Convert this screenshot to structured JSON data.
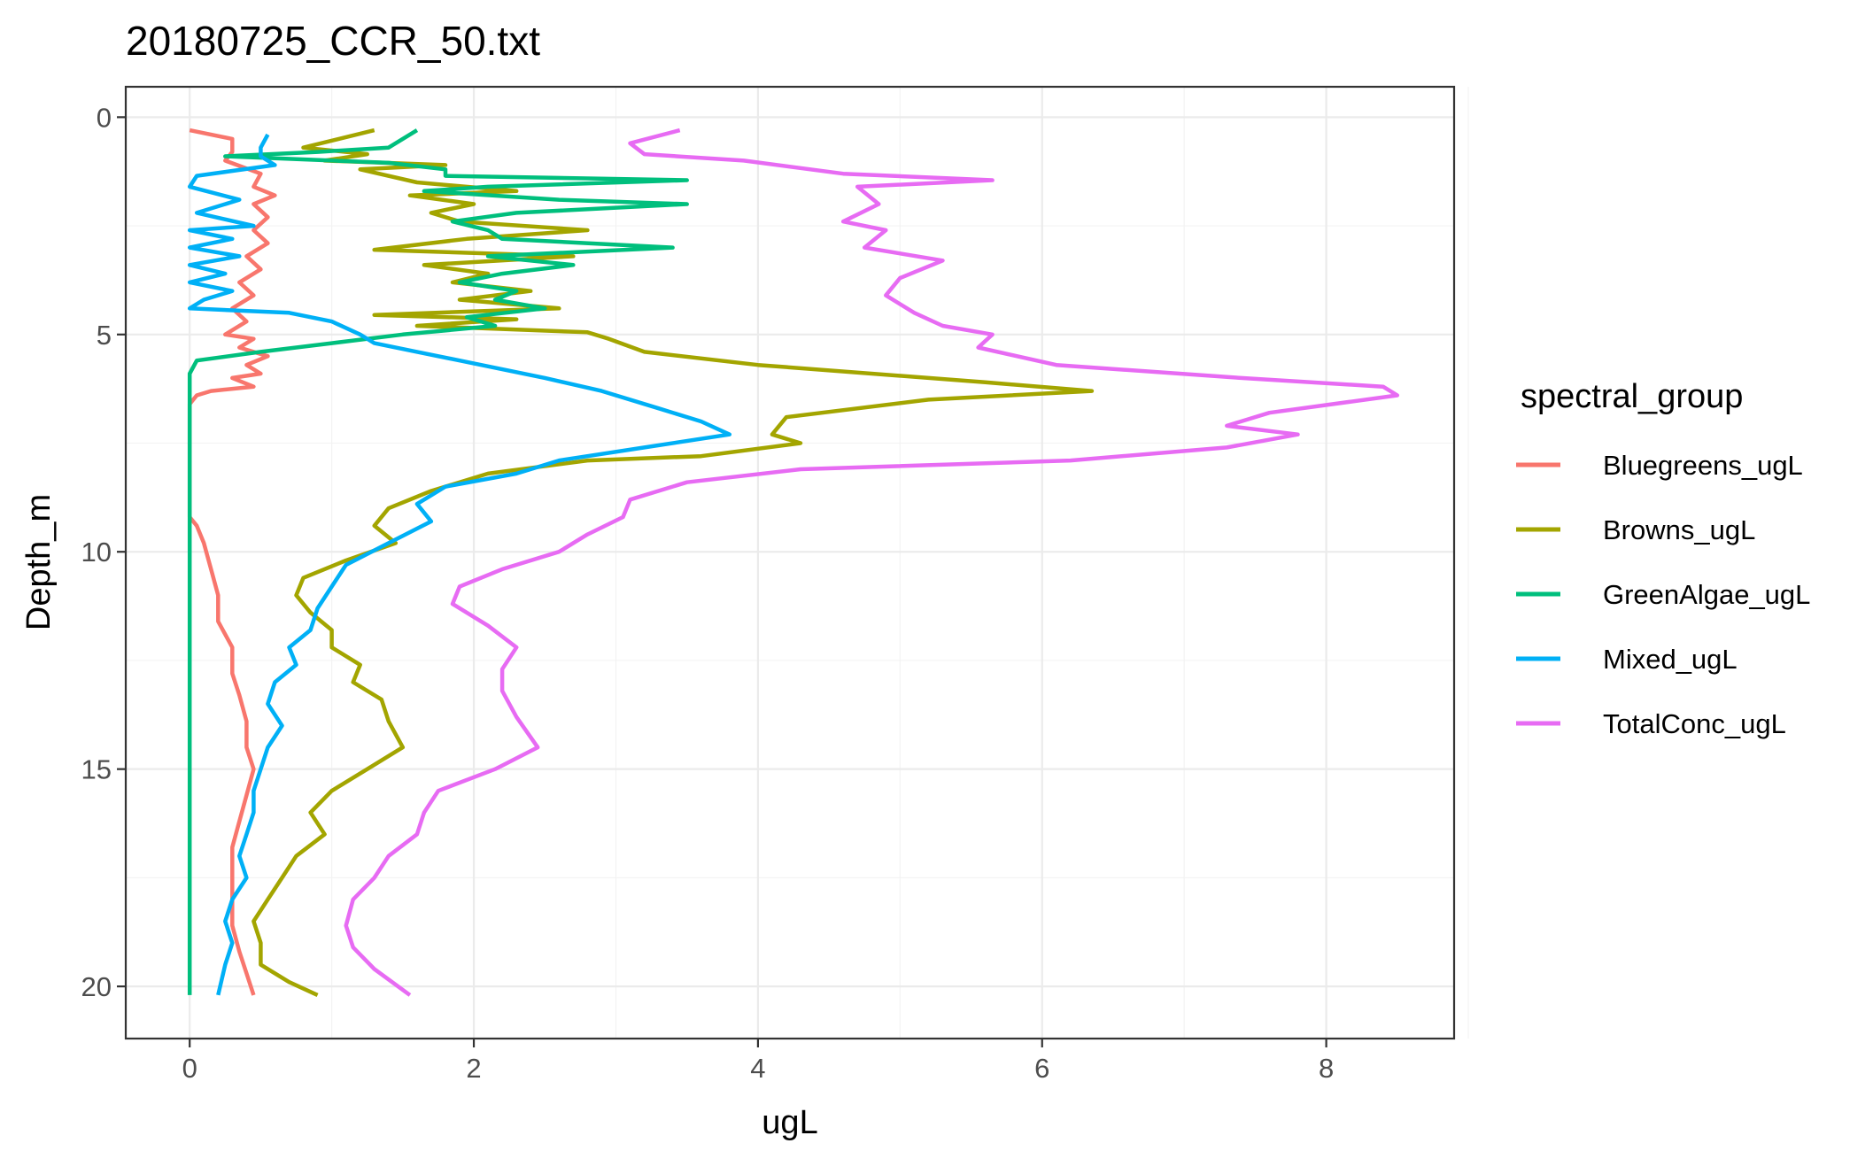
{
  "chart_data": {
    "type": "line",
    "title": "20180725_CCR_50.txt",
    "xlabel": "ugL",
    "ylabel": "Depth_m",
    "xlim": [
      -0.45,
      8.9
    ],
    "ylim": [
      21.2,
      -0.7
    ],
    "y_reversed": true,
    "x_ticks": [
      0,
      2,
      4,
      6,
      8
    ],
    "x_tick_labels": [
      "0",
      "2",
      "4",
      "6",
      "8"
    ],
    "y_ticks": [
      0,
      5,
      10,
      15,
      20
    ],
    "y_tick_labels": [
      "0",
      "5",
      "10",
      "15",
      "20"
    ],
    "grid": true,
    "legend": {
      "title": "spectral_group",
      "position": "right"
    },
    "series": [
      {
        "name": "Bluegreens_ugL",
        "color": "#F8766D",
        "points": [
          [
            0.0,
            0.3
          ],
          [
            0.3,
            0.5
          ],
          [
            0.3,
            0.8
          ],
          [
            0.25,
            1.0
          ],
          [
            0.5,
            1.3
          ],
          [
            0.45,
            1.6
          ],
          [
            0.6,
            1.8
          ],
          [
            0.45,
            2.0
          ],
          [
            0.55,
            2.3
          ],
          [
            0.45,
            2.6
          ],
          [
            0.55,
            2.9
          ],
          [
            0.4,
            3.2
          ],
          [
            0.5,
            3.5
          ],
          [
            0.35,
            3.8
          ],
          [
            0.45,
            4.1
          ],
          [
            0.3,
            4.4
          ],
          [
            0.4,
            4.7
          ],
          [
            0.25,
            5.0
          ],
          [
            0.45,
            5.1
          ],
          [
            0.35,
            5.3
          ],
          [
            0.55,
            5.5
          ],
          [
            0.4,
            5.7
          ],
          [
            0.5,
            5.9
          ],
          [
            0.3,
            6.0
          ],
          [
            0.45,
            6.2
          ],
          [
            0.15,
            6.3
          ],
          [
            0.05,
            6.4
          ],
          [
            0.0,
            6.6
          ],
          [
            0.0,
            9.2
          ],
          [
            0.05,
            9.4
          ],
          [
            0.1,
            9.8
          ],
          [
            0.15,
            10.4
          ],
          [
            0.2,
            11.0
          ],
          [
            0.2,
            11.6
          ],
          [
            0.3,
            12.2
          ],
          [
            0.3,
            12.8
          ],
          [
            0.35,
            13.3
          ],
          [
            0.4,
            13.9
          ],
          [
            0.4,
            14.5
          ],
          [
            0.45,
            15.0
          ],
          [
            0.4,
            15.6
          ],
          [
            0.35,
            16.2
          ],
          [
            0.3,
            16.8
          ],
          [
            0.3,
            17.4
          ],
          [
            0.3,
            18.0
          ],
          [
            0.3,
            18.6
          ],
          [
            0.35,
            19.2
          ],
          [
            0.4,
            19.7
          ],
          [
            0.45,
            20.2
          ]
        ]
      },
      {
        "name": "Browns_ugL",
        "color": "#A3A500",
        "points": [
          [
            1.3,
            0.3
          ],
          [
            0.8,
            0.7
          ],
          [
            1.25,
            0.85
          ],
          [
            0.95,
            1.0
          ],
          [
            1.8,
            1.1
          ],
          [
            1.2,
            1.2
          ],
          [
            1.6,
            1.5
          ],
          [
            2.3,
            1.7
          ],
          [
            1.55,
            1.8
          ],
          [
            2.0,
            2.0
          ],
          [
            1.7,
            2.2
          ],
          [
            1.9,
            2.4
          ],
          [
            2.8,
            2.6
          ],
          [
            1.95,
            2.8
          ],
          [
            1.3,
            3.05
          ],
          [
            2.7,
            3.2
          ],
          [
            1.65,
            3.4
          ],
          [
            2.1,
            3.6
          ],
          [
            1.85,
            3.8
          ],
          [
            2.4,
            4.0
          ],
          [
            1.9,
            4.2
          ],
          [
            2.6,
            4.4
          ],
          [
            1.3,
            4.55
          ],
          [
            2.3,
            4.65
          ],
          [
            1.6,
            4.8
          ],
          [
            2.8,
            4.95
          ],
          [
            2.95,
            5.1
          ],
          [
            3.2,
            5.4
          ],
          [
            4.0,
            5.7
          ],
          [
            5.6,
            6.1
          ],
          [
            6.35,
            6.3
          ],
          [
            5.2,
            6.5
          ],
          [
            4.2,
            6.9
          ],
          [
            4.1,
            7.3
          ],
          [
            4.3,
            7.5
          ],
          [
            3.6,
            7.8
          ],
          [
            2.8,
            7.9
          ],
          [
            2.1,
            8.2
          ],
          [
            1.7,
            8.6
          ],
          [
            1.4,
            9.0
          ],
          [
            1.3,
            9.4
          ],
          [
            1.45,
            9.8
          ],
          [
            1.1,
            10.2
          ],
          [
            0.8,
            10.6
          ],
          [
            0.75,
            11.0
          ],
          [
            0.85,
            11.4
          ],
          [
            1.0,
            11.8
          ],
          [
            1.0,
            12.2
          ],
          [
            1.2,
            12.6
          ],
          [
            1.15,
            13.0
          ],
          [
            1.35,
            13.4
          ],
          [
            1.4,
            13.9
          ],
          [
            1.5,
            14.5
          ],
          [
            1.25,
            15.0
          ],
          [
            1.0,
            15.5
          ],
          [
            0.85,
            16.0
          ],
          [
            0.95,
            16.5
          ],
          [
            0.75,
            17.0
          ],
          [
            0.65,
            17.5
          ],
          [
            0.55,
            18.0
          ],
          [
            0.45,
            18.5
          ],
          [
            0.5,
            19.0
          ],
          [
            0.5,
            19.5
          ],
          [
            0.7,
            19.9
          ],
          [
            0.9,
            20.2
          ]
        ]
      },
      {
        "name": "GreenAlgae_ugL",
        "color": "#00BF7D",
        "points": [
          [
            1.6,
            0.3
          ],
          [
            1.4,
            0.7
          ],
          [
            0.9,
            0.8
          ],
          [
            0.25,
            0.9
          ],
          [
            1.4,
            1.05
          ],
          [
            1.8,
            1.2
          ],
          [
            1.8,
            1.35
          ],
          [
            3.5,
            1.45
          ],
          [
            2.1,
            1.6
          ],
          [
            1.65,
            1.7
          ],
          [
            2.6,
            1.9
          ],
          [
            3.5,
            2.0
          ],
          [
            2.3,
            2.2
          ],
          [
            1.85,
            2.4
          ],
          [
            2.1,
            2.6
          ],
          [
            2.2,
            2.8
          ],
          [
            3.4,
            3.0
          ],
          [
            2.1,
            3.2
          ],
          [
            2.7,
            3.4
          ],
          [
            2.2,
            3.6
          ],
          [
            1.9,
            3.8
          ],
          [
            2.3,
            4.0
          ],
          [
            2.15,
            4.2
          ],
          [
            2.5,
            4.4
          ],
          [
            1.95,
            4.6
          ],
          [
            2.15,
            4.8
          ],
          [
            1.5,
            5.0
          ],
          [
            1.0,
            5.2
          ],
          [
            0.5,
            5.4
          ],
          [
            0.05,
            5.6
          ],
          [
            0.0,
            5.9
          ],
          [
            0.0,
            20.2
          ]
        ]
      },
      {
        "name": "Mixed_ugL",
        "color": "#00B0F6",
        "points": [
          [
            0.55,
            0.4
          ],
          [
            0.5,
            0.7
          ],
          [
            0.5,
            0.9
          ],
          [
            0.6,
            1.1
          ],
          [
            0.05,
            1.35
          ],
          [
            0.0,
            1.6
          ],
          [
            0.35,
            1.9
          ],
          [
            0.05,
            2.2
          ],
          [
            0.45,
            2.5
          ],
          [
            0.0,
            2.6
          ],
          [
            0.3,
            2.8
          ],
          [
            0.0,
            3.0
          ],
          [
            0.35,
            3.2
          ],
          [
            0.0,
            3.4
          ],
          [
            0.25,
            3.6
          ],
          [
            0.0,
            3.8
          ],
          [
            0.3,
            4.0
          ],
          [
            0.1,
            4.2
          ],
          [
            0.0,
            4.4
          ],
          [
            0.7,
            4.5
          ],
          [
            1.0,
            4.7
          ],
          [
            1.2,
            5.0
          ],
          [
            1.3,
            5.2
          ],
          [
            1.6,
            5.4
          ],
          [
            1.9,
            5.6
          ],
          [
            2.2,
            5.8
          ],
          [
            2.5,
            6.0
          ],
          [
            2.9,
            6.3
          ],
          [
            3.3,
            6.7
          ],
          [
            3.6,
            7.0
          ],
          [
            3.8,
            7.3
          ],
          [
            3.2,
            7.6
          ],
          [
            2.6,
            7.9
          ],
          [
            2.3,
            8.2
          ],
          [
            1.8,
            8.5
          ],
          [
            1.6,
            8.9
          ],
          [
            1.7,
            9.3
          ],
          [
            1.4,
            9.8
          ],
          [
            1.1,
            10.3
          ],
          [
            1.0,
            10.8
          ],
          [
            0.9,
            11.3
          ],
          [
            0.85,
            11.8
          ],
          [
            0.7,
            12.2
          ],
          [
            0.75,
            12.6
          ],
          [
            0.6,
            13.0
          ],
          [
            0.55,
            13.5
          ],
          [
            0.65,
            14.0
          ],
          [
            0.55,
            14.5
          ],
          [
            0.5,
            15.0
          ],
          [
            0.45,
            15.5
          ],
          [
            0.45,
            16.0
          ],
          [
            0.4,
            16.5
          ],
          [
            0.35,
            17.0
          ],
          [
            0.4,
            17.5
          ],
          [
            0.3,
            18.0
          ],
          [
            0.25,
            18.5
          ],
          [
            0.3,
            19.0
          ],
          [
            0.25,
            19.5
          ],
          [
            0.2,
            20.2
          ]
        ]
      },
      {
        "name": "TotalConc_ugL",
        "color": "#E76BF3",
        "points": [
          [
            3.45,
            0.3
          ],
          [
            3.1,
            0.6
          ],
          [
            3.2,
            0.85
          ],
          [
            3.9,
            1.0
          ],
          [
            4.6,
            1.3
          ],
          [
            5.65,
            1.45
          ],
          [
            4.7,
            1.6
          ],
          [
            4.85,
            2.0
          ],
          [
            4.6,
            2.4
          ],
          [
            4.9,
            2.6
          ],
          [
            4.75,
            3.0
          ],
          [
            5.3,
            3.3
          ],
          [
            5.0,
            3.7
          ],
          [
            4.9,
            4.1
          ],
          [
            5.1,
            4.5
          ],
          [
            5.3,
            4.8
          ],
          [
            5.65,
            5.0
          ],
          [
            5.55,
            5.3
          ],
          [
            6.1,
            5.7
          ],
          [
            7.4,
            6.0
          ],
          [
            8.4,
            6.2
          ],
          [
            8.5,
            6.4
          ],
          [
            7.6,
            6.8
          ],
          [
            7.3,
            7.1
          ],
          [
            7.8,
            7.3
          ],
          [
            7.3,
            7.6
          ],
          [
            6.2,
            7.9
          ],
          [
            4.3,
            8.1
          ],
          [
            3.5,
            8.4
          ],
          [
            3.1,
            8.8
          ],
          [
            3.05,
            9.2
          ],
          [
            2.8,
            9.6
          ],
          [
            2.6,
            10.0
          ],
          [
            2.2,
            10.4
          ],
          [
            1.9,
            10.8
          ],
          [
            1.85,
            11.2
          ],
          [
            2.1,
            11.7
          ],
          [
            2.3,
            12.2
          ],
          [
            2.2,
            12.7
          ],
          [
            2.2,
            13.2
          ],
          [
            2.3,
            13.8
          ],
          [
            2.45,
            14.5
          ],
          [
            2.15,
            15.0
          ],
          [
            1.75,
            15.5
          ],
          [
            1.65,
            16.0
          ],
          [
            1.6,
            16.5
          ],
          [
            1.4,
            17.0
          ],
          [
            1.3,
            17.5
          ],
          [
            1.15,
            18.0
          ],
          [
            1.1,
            18.6
          ],
          [
            1.15,
            19.1
          ],
          [
            1.3,
            19.6
          ],
          [
            1.55,
            20.2
          ]
        ]
      }
    ]
  }
}
